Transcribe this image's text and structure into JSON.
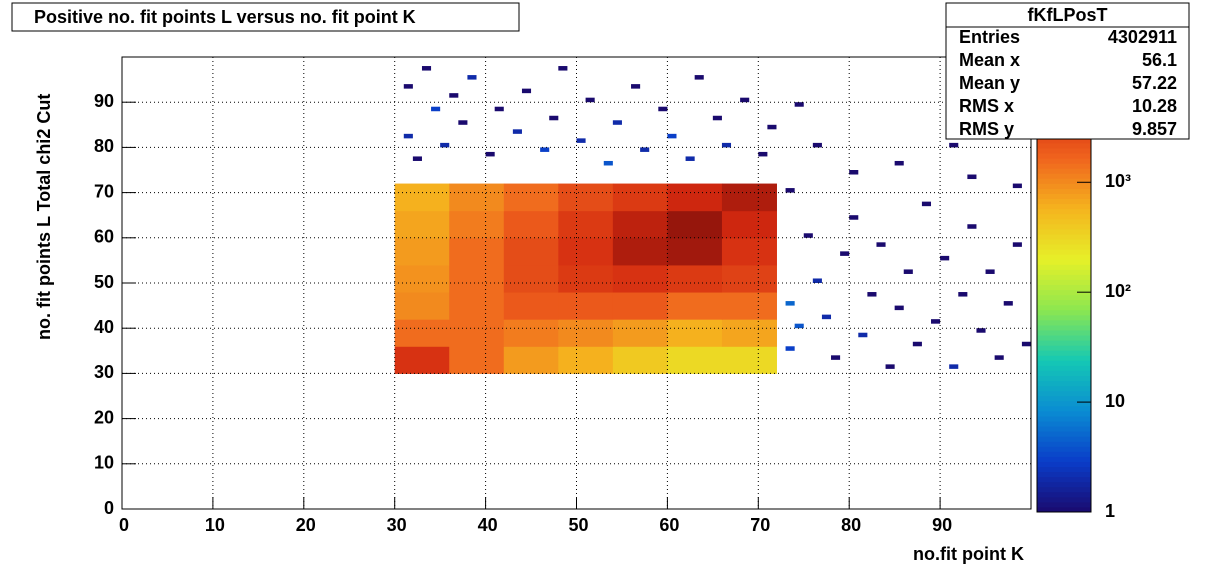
{
  "chart_data": {
    "type": "heatmap",
    "title": "Positive no. fit points L versus no. fit point K",
    "xlabel": "no.fit point K",
    "ylabel": "no. fit points  L   Total chi2 Cut",
    "xlim": [
      0,
      100
    ],
    "ylim": [
      0,
      100
    ],
    "xticks": [
      0,
      10,
      20,
      30,
      40,
      50,
      60,
      70,
      80,
      90
    ],
    "yticks": [
      0,
      10,
      20,
      30,
      40,
      50,
      60,
      70,
      80,
      90
    ],
    "grid": true,
    "zlog": true,
    "zlim": [
      1,
      13800
    ],
    "zticks": [
      1,
      10,
      {
        "value": 100,
        "label": "10²"
      },
      {
        "value": 1000,
        "label": "10³"
      }
    ],
    "palette": [
      "#1a0a6e",
      "#0a3cc8",
      "#0a8cd2",
      "#14c8b4",
      "#8ce650",
      "#e6f028",
      "#f5b41e",
      "#f0641e",
      "#d2280f",
      "#6e0a0a"
    ],
    "xbins": [
      30,
      36,
      42,
      48,
      54,
      60,
      66,
      72
    ],
    "ybins": [
      30,
      36,
      42,
      48,
      54,
      60,
      66,
      72
    ],
    "z": [
      [
        4000,
        1500,
        800,
        600,
        400,
        300,
        300
      ],
      [
        1500,
        1500,
        1200,
        1000,
        800,
        600,
        700
      ],
      [
        1000,
        1500,
        2000,
        2000,
        2000,
        1500,
        1500
      ],
      [
        900,
        1500,
        2500,
        3500,
        4000,
        3500,
        3000
      ],
      [
        800,
        1500,
        2500,
        4000,
        7000,
        8000,
        4000
      ],
      [
        700,
        1200,
        2000,
        3500,
        6000,
        9000,
        5000
      ],
      [
        600,
        1000,
        1500,
        2500,
        3500,
        5000,
        7000
      ]
    ],
    "sparse": [
      [
        31,
        93,
        1
      ],
      [
        31,
        82,
        2
      ],
      [
        32,
        77,
        1
      ],
      [
        33,
        97,
        1
      ],
      [
        34,
        88,
        3
      ],
      [
        35,
        80,
        2
      ],
      [
        36,
        91,
        1
      ],
      [
        37,
        85,
        1
      ],
      [
        38,
        95,
        2
      ],
      [
        40,
        78,
        1
      ],
      [
        41,
        88,
        1
      ],
      [
        43,
        83,
        2
      ],
      [
        44,
        92,
        1
      ],
      [
        46,
        79,
        3
      ],
      [
        47,
        86,
        1
      ],
      [
        48,
        97,
        1
      ],
      [
        50,
        81,
        2
      ],
      [
        51,
        90,
        1
      ],
      [
        53,
        76,
        4
      ],
      [
        54,
        85,
        2
      ],
      [
        56,
        93,
        1
      ],
      [
        57,
        79,
        2
      ],
      [
        59,
        88,
        1
      ],
      [
        60,
        82,
        3
      ],
      [
        62,
        77,
        2
      ],
      [
        63,
        95,
        1
      ],
      [
        65,
        86,
        1
      ],
      [
        66,
        80,
        2
      ],
      [
        68,
        90,
        1
      ],
      [
        70,
        78,
        1
      ],
      [
        71,
        84,
        1
      ],
      [
        74,
        89,
        1
      ],
      [
        76,
        80,
        1
      ],
      [
        80,
        74,
        1
      ],
      [
        85,
        76,
        1
      ],
      [
        73,
        70,
        1
      ],
      [
        73,
        45,
        5
      ],
      [
        74,
        40,
        4
      ],
      [
        73,
        35,
        3
      ],
      [
        75,
        60,
        1
      ],
      [
        76,
        50,
        2
      ],
      [
        77,
        42,
        2
      ],
      [
        78,
        33,
        1
      ],
      [
        79,
        56,
        1
      ],
      [
        80,
        64,
        1
      ],
      [
        81,
        38,
        2
      ],
      [
        82,
        47,
        1
      ],
      [
        83,
        58,
        1
      ],
      [
        84,
        31,
        1
      ],
      [
        85,
        44,
        1
      ],
      [
        86,
        52,
        1
      ],
      [
        87,
        36,
        1
      ],
      [
        88,
        67,
        1
      ],
      [
        89,
        41,
        1
      ],
      [
        90,
        55,
        1
      ],
      [
        91,
        31,
        2
      ],
      [
        92,
        47,
        1
      ],
      [
        93,
        62,
        1
      ],
      [
        94,
        39,
        1
      ],
      [
        95,
        52,
        1
      ],
      [
        96,
        33,
        1
      ],
      [
        97,
        45,
        1
      ],
      [
        98,
        58,
        1
      ],
      [
        99,
        36,
        1
      ],
      [
        91,
        80,
        1
      ],
      [
        93,
        73,
        1
      ],
      [
        98,
        71,
        1
      ]
    ],
    "stats": {
      "title": "fKfLPosT",
      "rows": [
        [
          "Entries",
          "4302911"
        ],
        [
          "Mean x",
          "56.1"
        ],
        [
          "Mean y",
          "57.22"
        ],
        [
          "RMS x",
          "10.28"
        ],
        [
          "RMS y",
          "9.857"
        ]
      ]
    }
  }
}
